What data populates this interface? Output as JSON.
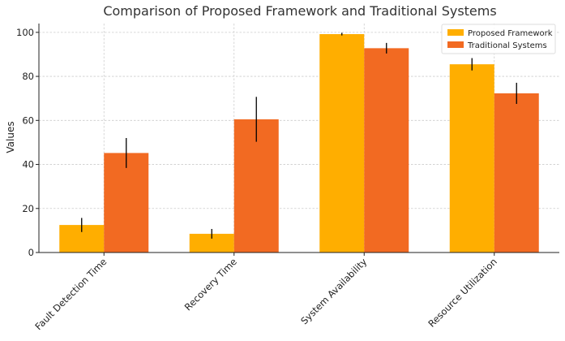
{
  "chart_data": {
    "type": "bar",
    "title": "Comparison of Proposed Framework and Traditional Systems",
    "xlabel": "",
    "ylabel": "Values",
    "ylim": [
      0,
      104
    ],
    "yticks": [
      0,
      20,
      40,
      60,
      80,
      100
    ],
    "categories": [
      "Fault Detection Time",
      "Recovery Time",
      "System Availability",
      "Resource Utilization"
    ],
    "series": [
      {
        "name": "Proposed Framework",
        "color": "#FFAE00",
        "values": [
          12.5,
          8.5,
          99.2,
          85.5
        ],
        "errors": [
          3.2,
          2.2,
          0.6,
          2.8
        ]
      },
      {
        "name": "Traditional Systems",
        "color": "#F26A22",
        "values": [
          45.2,
          60.5,
          92.8,
          72.3
        ],
        "errors": [
          6.8,
          10.2,
          2.4,
          4.8
        ]
      }
    ],
    "grid": true,
    "legend_position": "top-right"
  }
}
